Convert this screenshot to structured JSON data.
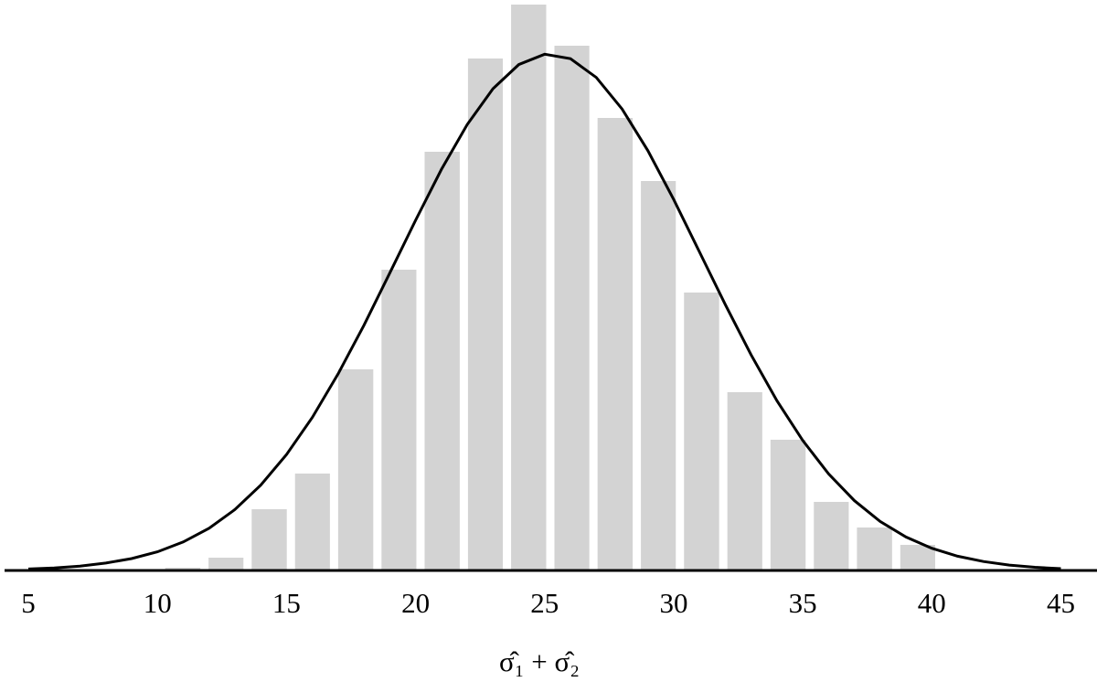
{
  "chart_data": {
    "type": "histogram",
    "x_label": "σ̂₁ + σ̂₂",
    "bins": [
      10.3,
      11.98,
      13.65,
      15.33,
      17.0,
      18.68,
      20.35,
      22.03,
      23.7,
      25.38,
      27.05,
      28.73,
      30.4,
      32.08,
      33.75,
      35.43,
      37.1,
      38.78,
      40.45
    ],
    "values": [
      3,
      14,
      67,
      106,
      220,
      329,
      458,
      560,
      619,
      574,
      495,
      426,
      304,
      195,
      143,
      75,
      47,
      28
    ],
    "color": "#d3d3d3",
    "curve": {
      "color": "#000000",
      "x": [
        5,
        6,
        7,
        8,
        9,
        10,
        11,
        12,
        13,
        14,
        15,
        16,
        17,
        18,
        19,
        20,
        21,
        22,
        23,
        24,
        25,
        26,
        27,
        28,
        29,
        30,
        31,
        32,
        33,
        34,
        35,
        36,
        37,
        38,
        39,
        40,
        41,
        42,
        43,
        44,
        45
      ],
      "values": [
        1.6,
        2.8,
        4.8,
        8.1,
        13.0,
        20.4,
        31.2,
        46.2,
        66.6,
        93.3,
        126.8,
        167.4,
        215.1,
        268.2,
        325.3,
        383,
        438.6,
        487.7,
        527,
        553.4,
        564.7,
        559.8,
        539.3,
        504.8,
        459.2,
        405.8,
        348.4,
        290.8,
        235.8,
        185.7,
        142.2,
        105.7,
        76.4,
        53.6,
        36.6,
        24.3,
        15.6,
        9.8,
        5.9,
        3.5,
        2.0
      ]
    },
    "xlim": [
      3.9,
      46.4
    ],
    "xticks": [
      5,
      10,
      15,
      20,
      25,
      30,
      35,
      40,
      45
    ],
    "ylim": [
      0,
      620
    ]
  }
}
